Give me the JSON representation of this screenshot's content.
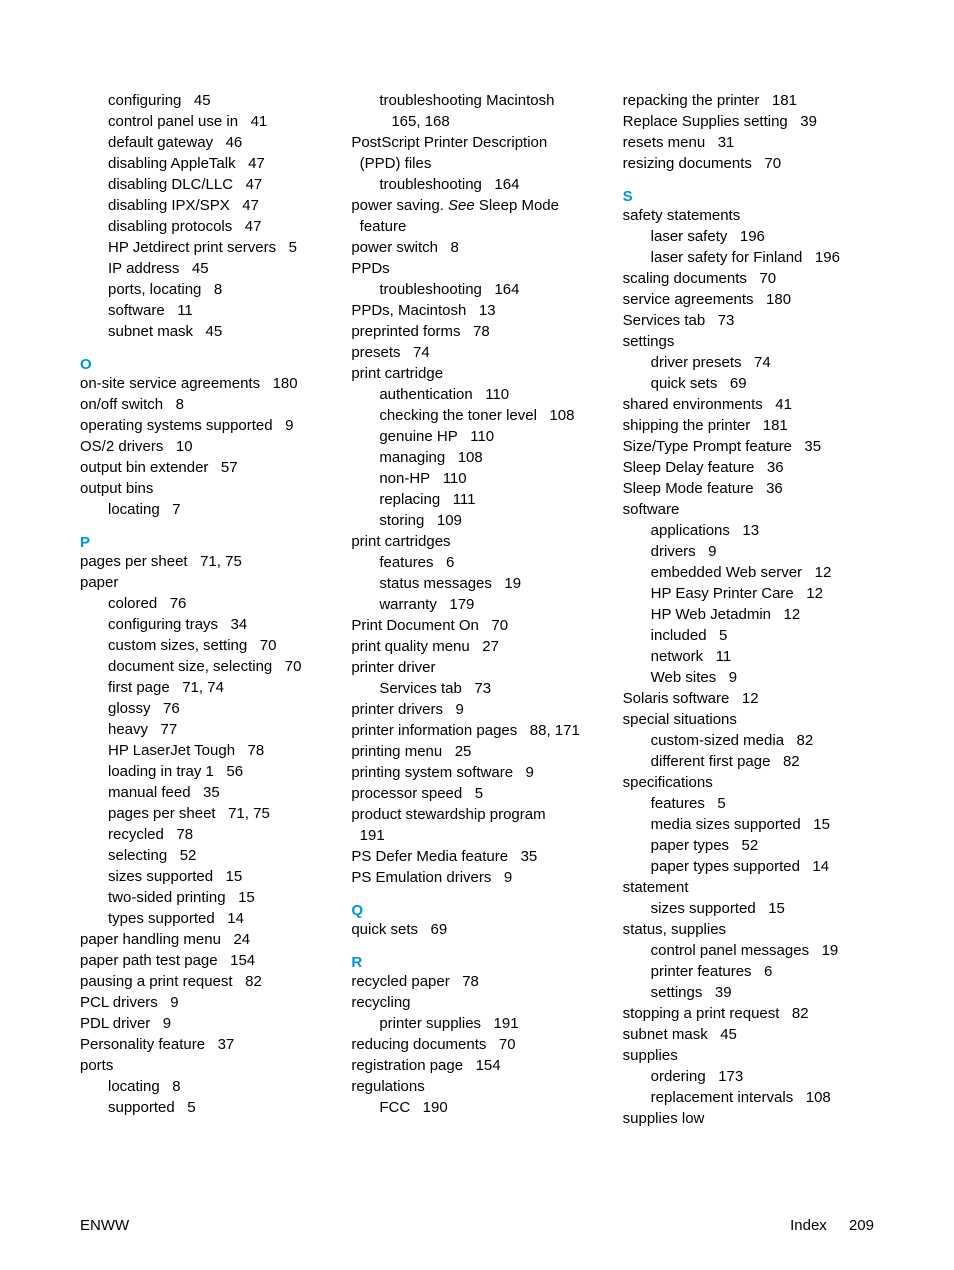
{
  "col1": {
    "networkSub": [
      {
        "text": "configuring",
        "page": "45"
      },
      {
        "text": "control panel use in",
        "page": "41"
      },
      {
        "text": "default gateway",
        "page": "46"
      },
      {
        "text": "disabling AppleTalk",
        "page": "47"
      },
      {
        "text": "disabling DLC/LLC",
        "page": "47"
      },
      {
        "text": "disabling IPX/SPX",
        "page": "47"
      },
      {
        "text": "disabling protocols",
        "page": "47"
      },
      {
        "text": "HP Jetdirect print servers",
        "page": "5"
      },
      {
        "text": "IP address",
        "page": "45"
      },
      {
        "text": "ports, locating",
        "page": "8"
      },
      {
        "text": "software",
        "page": "11"
      },
      {
        "text": "subnet mask",
        "page": "45"
      }
    ],
    "letterO": "O",
    "oEntries": [
      {
        "text": "on-site service agreements",
        "page": "180"
      },
      {
        "text": "on/off switch",
        "page": "8"
      },
      {
        "text": "operating systems supported",
        "page": "9"
      },
      {
        "text": "OS/2 drivers",
        "page": "10"
      },
      {
        "text": "output bin extender",
        "page": "57"
      },
      {
        "text": "output bins",
        "page": ""
      },
      {
        "text": "locating",
        "page": "7",
        "sub": true
      }
    ],
    "letterP": "P",
    "pEntries": [
      {
        "text": "pages per sheet",
        "page": "71, 75"
      },
      {
        "text": "paper",
        "page": ""
      },
      {
        "text": "colored",
        "page": "76",
        "sub": true
      },
      {
        "text": "configuring trays",
        "page": "34",
        "sub": true
      },
      {
        "text": "custom sizes, setting",
        "page": "70",
        "sub": true
      },
      {
        "text": "document size, selecting",
        "page": "70",
        "sub": true
      },
      {
        "text": "first page",
        "page": "71, 74",
        "sub": true
      },
      {
        "text": "glossy",
        "page": "76",
        "sub": true
      },
      {
        "text": "heavy",
        "page": "77",
        "sub": true
      },
      {
        "text": "HP LaserJet Tough",
        "page": "78",
        "sub": true
      },
      {
        "text": "loading in tray 1",
        "page": "56",
        "sub": true
      },
      {
        "text": "manual feed",
        "page": "35",
        "sub": true
      },
      {
        "text": "pages per sheet",
        "page": "71, 75",
        "sub": true
      },
      {
        "text": "recycled",
        "page": "78",
        "sub": true
      },
      {
        "text": "selecting",
        "page": "52",
        "sub": true
      },
      {
        "text": "sizes supported",
        "page": "15",
        "sub": true
      },
      {
        "text": "two-sided printing",
        "page": "15",
        "sub": true
      },
      {
        "text": "types supported",
        "page": "14",
        "sub": true
      },
      {
        "text": "paper handling menu",
        "page": "24"
      },
      {
        "text": "paper path test page",
        "page": "154"
      },
      {
        "text": "pausing a print request",
        "page": "82"
      },
      {
        "text": "PCL drivers",
        "page": "9"
      },
      {
        "text": "PDL driver",
        "page": "9"
      },
      {
        "text": "Personality feature",
        "page": "37"
      },
      {
        "text": "ports",
        "page": ""
      },
      {
        "text": "locating",
        "page": "8",
        "sub": true
      },
      {
        "text": "supported",
        "page": "5",
        "sub": true
      }
    ]
  },
  "col2": {
    "entries": [
      {
        "text": "troubleshooting Macintosh",
        "page": "",
        "sub": true
      },
      {
        "text": "165, 168",
        "page": "",
        "sub": true,
        "extraPad": true
      },
      {
        "text": "PostScript Printer Description",
        "page": ""
      },
      {
        "text": "(PPD) files",
        "page": "",
        "hang": true
      },
      {
        "text": "troubleshooting",
        "page": "164",
        "sub": true
      },
      {
        "html": "power saving. <span class=\"italic\">See</span> Sleep Mode",
        "page": ""
      },
      {
        "text": "feature",
        "page": "",
        "hang": true
      },
      {
        "text": "power switch",
        "page": "8"
      },
      {
        "text": "PPDs",
        "page": ""
      },
      {
        "text": "troubleshooting",
        "page": "164",
        "sub": true
      },
      {
        "text": "PPDs, Macintosh",
        "page": "13"
      },
      {
        "text": "preprinted forms",
        "page": "78"
      },
      {
        "text": "presets",
        "page": "74"
      },
      {
        "text": "print cartridge",
        "page": ""
      },
      {
        "text": "authentication",
        "page": "110",
        "sub": true
      },
      {
        "text": "checking the toner level",
        "page": "108",
        "sub": true
      },
      {
        "text": "genuine HP",
        "page": "110",
        "sub": true
      },
      {
        "text": "managing",
        "page": "108",
        "sub": true
      },
      {
        "text": "non-HP",
        "page": "110",
        "sub": true
      },
      {
        "text": "replacing",
        "page": "111",
        "sub": true
      },
      {
        "text": "storing",
        "page": "109",
        "sub": true
      },
      {
        "text": "print cartridges",
        "page": ""
      },
      {
        "text": "features",
        "page": "6",
        "sub": true
      },
      {
        "text": "status messages",
        "page": "19",
        "sub": true
      },
      {
        "text": "warranty",
        "page": "179",
        "sub": true
      },
      {
        "text": "Print Document On",
        "page": "70"
      },
      {
        "text": "print quality menu",
        "page": "27"
      },
      {
        "text": "printer driver",
        "page": ""
      },
      {
        "text": "Services tab",
        "page": "73",
        "sub": true
      },
      {
        "text": "printer drivers",
        "page": "9"
      },
      {
        "text": "printer information pages",
        "page": "88, 171"
      },
      {
        "text": "printing menu",
        "page": "25"
      },
      {
        "text": "printing system software",
        "page": "9"
      },
      {
        "text": "processor speed",
        "page": "5"
      },
      {
        "text": "product stewardship program",
        "page": ""
      },
      {
        "text": "191",
        "page": "",
        "hang": true
      },
      {
        "text": "PS Defer Media feature",
        "page": "35"
      },
      {
        "text": "PS Emulation drivers",
        "page": "9"
      }
    ],
    "letterQ": "Q",
    "qEntries": [
      {
        "text": "quick sets",
        "page": "69"
      }
    ],
    "letterR": "R",
    "rEntries": [
      {
        "text": "recycled paper",
        "page": "78"
      },
      {
        "text": "recycling",
        "page": ""
      },
      {
        "text": "printer supplies",
        "page": "191",
        "sub": true
      },
      {
        "text": "reducing documents",
        "page": "70"
      },
      {
        "text": "registration page",
        "page": "154"
      },
      {
        "text": "regulations",
        "page": ""
      },
      {
        "text": "FCC",
        "page": "190",
        "sub": true
      }
    ]
  },
  "col3": {
    "topEntries": [
      {
        "text": "repacking the printer",
        "page": "181"
      },
      {
        "text": "Replace Supplies setting",
        "page": "39"
      },
      {
        "text": "resets menu",
        "page": "31"
      },
      {
        "text": "resizing documents",
        "page": "70"
      }
    ],
    "letterS": "S",
    "sEntries": [
      {
        "text": "safety statements",
        "page": ""
      },
      {
        "text": "laser safety",
        "page": "196",
        "sub": true
      },
      {
        "text": "laser safety for Finland",
        "page": "196",
        "sub": true
      },
      {
        "text": "scaling documents",
        "page": "70"
      },
      {
        "text": "service agreements",
        "page": "180"
      },
      {
        "text": "Services tab",
        "page": "73"
      },
      {
        "text": "settings",
        "page": ""
      },
      {
        "text": "driver presets",
        "page": "74",
        "sub": true
      },
      {
        "text": "quick sets",
        "page": "69",
        "sub": true
      },
      {
        "text": "shared environments",
        "page": "41"
      },
      {
        "text": "shipping the printer",
        "page": "181"
      },
      {
        "text": "Size/Type Prompt feature",
        "page": "35"
      },
      {
        "text": "Sleep Delay feature",
        "page": "36"
      },
      {
        "text": "Sleep Mode feature",
        "page": "36"
      },
      {
        "text": "software",
        "page": ""
      },
      {
        "text": "applications",
        "page": "13",
        "sub": true
      },
      {
        "text": "drivers",
        "page": "9",
        "sub": true
      },
      {
        "text": "embedded Web server",
        "page": "12",
        "sub": true
      },
      {
        "text": "HP Easy Printer Care",
        "page": "12",
        "sub": true
      },
      {
        "text": "HP Web Jetadmin",
        "page": "12",
        "sub": true
      },
      {
        "text": "included",
        "page": "5",
        "sub": true
      },
      {
        "text": "network",
        "page": "11",
        "sub": true
      },
      {
        "text": "Web sites",
        "page": "9",
        "sub": true
      },
      {
        "text": "Solaris software",
        "page": "12"
      },
      {
        "text": "special situations",
        "page": ""
      },
      {
        "text": "custom-sized media",
        "page": "82",
        "sub": true
      },
      {
        "text": "different first page",
        "page": "82",
        "sub": true
      },
      {
        "text": "specifications",
        "page": ""
      },
      {
        "text": "features",
        "page": "5",
        "sub": true
      },
      {
        "text": "media sizes supported",
        "page": "15",
        "sub": true
      },
      {
        "text": "paper types",
        "page": "52",
        "sub": true
      },
      {
        "text": "paper types supported",
        "page": "14",
        "sub": true
      },
      {
        "text": "statement",
        "page": ""
      },
      {
        "text": "sizes supported",
        "page": "15",
        "sub": true
      },
      {
        "text": "status, supplies",
        "page": ""
      },
      {
        "text": "control panel messages",
        "page": "19",
        "sub": true
      },
      {
        "text": "printer features",
        "page": "6",
        "sub": true
      },
      {
        "text": "settings",
        "page": "39",
        "sub": true
      },
      {
        "text": "stopping a print request",
        "page": "82"
      },
      {
        "text": "subnet mask",
        "page": "45"
      },
      {
        "text": "supplies",
        "page": ""
      },
      {
        "text": "ordering",
        "page": "173",
        "sub": true
      },
      {
        "text": "replacement intervals",
        "page": "108",
        "sub": true
      },
      {
        "text": "supplies low",
        "page": ""
      }
    ]
  },
  "footer": {
    "left": "ENWW",
    "rightLabel": "Index",
    "rightPage": "209"
  }
}
